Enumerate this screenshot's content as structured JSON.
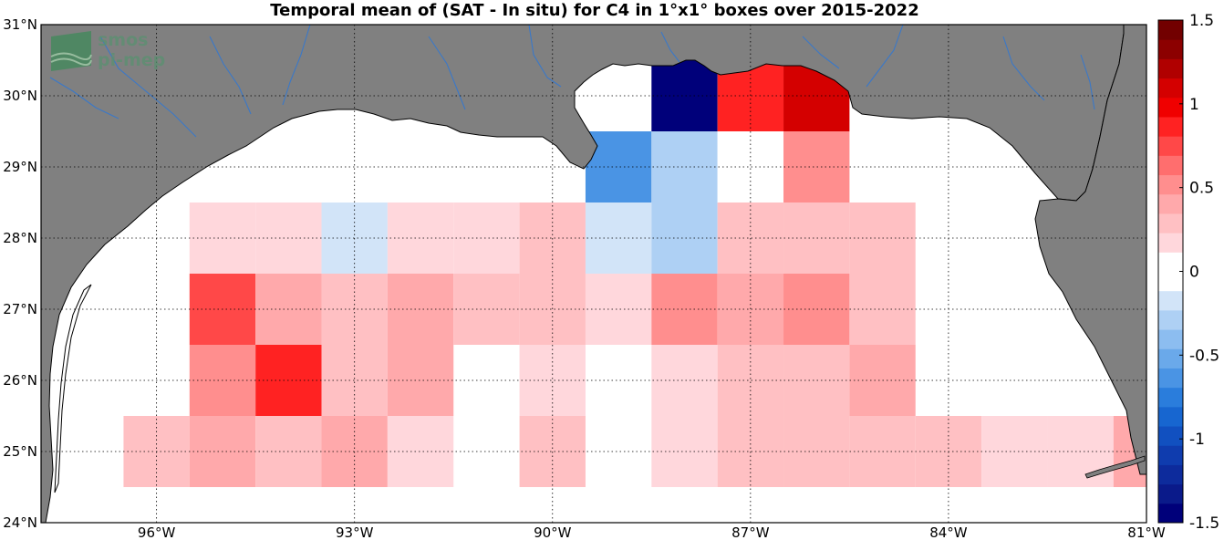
{
  "title": "Temporal mean of (SAT - In situ) for C4 in 1°x1° boxes over 2015-2022",
  "logo": {
    "line1": "smos",
    "line2": "pi-mep"
  },
  "map_extent": {
    "lon_min": -97.75,
    "lon_max": -81,
    "lat_min": 24,
    "lat_max": 31
  },
  "lat_ticks": [
    {
      "value": 31,
      "label": "31°N"
    },
    {
      "value": 30,
      "label": "30°N"
    },
    {
      "value": 29,
      "label": "29°N"
    },
    {
      "value": 28,
      "label": "28°N"
    },
    {
      "value": 27,
      "label": "27°N"
    },
    {
      "value": 26,
      "label": "26°N"
    },
    {
      "value": 25,
      "label": "25°N"
    },
    {
      "value": 24,
      "label": "24°N"
    }
  ],
  "lon_ticks": [
    {
      "value": -96,
      "label": "96°W"
    },
    {
      "value": -93,
      "label": "93°W"
    },
    {
      "value": -90,
      "label": "90°W"
    },
    {
      "value": -87,
      "label": "87°W"
    },
    {
      "value": -84,
      "label": "84°W"
    },
    {
      "value": -81,
      "label": "81°W"
    }
  ],
  "colorbar": {
    "range": [
      -1.5,
      1.5
    ],
    "ticks": [
      {
        "value": 1.5,
        "label": "1.5"
      },
      {
        "value": 1,
        "label": "1"
      },
      {
        "value": 0.5,
        "label": "0.5"
      },
      {
        "value": 0,
        "label": "0"
      },
      {
        "value": -0.5,
        "label": "-0.5"
      },
      {
        "value": -1,
        "label": "-1"
      },
      {
        "value": -1.5,
        "label": "-1.5"
      }
    ]
  },
  "colors": {
    "land": "#808080",
    "rivers": "#3a78c8",
    "ocean": "#ffffff"
  },
  "chart_data": {
    "type": "heatmap",
    "cell_size_deg": 1,
    "cells": [
      {
        "lon": -88,
        "lat": 30,
        "value": -1.45
      },
      {
        "lon": -87,
        "lat": 30,
        "value": 0.9
      },
      {
        "lon": -86,
        "lat": 30,
        "value": 1.1
      },
      {
        "lon": -89,
        "lat": 29,
        "value": -0.6
      },
      {
        "lon": -88,
        "lat": 29,
        "value": -0.3
      },
      {
        "lon": -87,
        "lat": 29,
        "value": 0.0
      },
      {
        "lon": -86,
        "lat": 29,
        "value": 0.55
      },
      {
        "lon": -95,
        "lat": 28,
        "value": 0.15
      },
      {
        "lon": -94,
        "lat": 28,
        "value": 0.15
      },
      {
        "lon": -93,
        "lat": 28,
        "value": -0.15
      },
      {
        "lon": -92,
        "lat": 28,
        "value": 0.15
      },
      {
        "lon": -91,
        "lat": 28,
        "value": 0.15
      },
      {
        "lon": -90,
        "lat": 28,
        "value": 0.25
      },
      {
        "lon": -89,
        "lat": 28,
        "value": -0.15
      },
      {
        "lon": -88,
        "lat": 28,
        "value": -0.3
      },
      {
        "lon": -87,
        "lat": 28,
        "value": 0.25
      },
      {
        "lon": -86,
        "lat": 28,
        "value": 0.25
      },
      {
        "lon": -85,
        "lat": 28,
        "value": 0.25
      },
      {
        "lon": -95,
        "lat": 27,
        "value": 0.7
      },
      {
        "lon": -94,
        "lat": 27,
        "value": 0.45
      },
      {
        "lon": -93,
        "lat": 27,
        "value": 0.3
      },
      {
        "lon": -92,
        "lat": 27,
        "value": 0.45
      },
      {
        "lon": -91,
        "lat": 27,
        "value": 0.25
      },
      {
        "lon": -90,
        "lat": 27,
        "value": 0.25
      },
      {
        "lon": -89,
        "lat": 27,
        "value": 0.15
      },
      {
        "lon": -88,
        "lat": 27,
        "value": 0.55
      },
      {
        "lon": -87,
        "lat": 27,
        "value": 0.45
      },
      {
        "lon": -86,
        "lat": 27,
        "value": 0.55
      },
      {
        "lon": -85,
        "lat": 27,
        "value": 0.25
      },
      {
        "lon": -95,
        "lat": 26,
        "value": 0.55
      },
      {
        "lon": -94,
        "lat": 26,
        "value": 0.9
      },
      {
        "lon": -93,
        "lat": 26,
        "value": 0.3
      },
      {
        "lon": -92,
        "lat": 26,
        "value": 0.45
      },
      {
        "lon": -90,
        "lat": 26,
        "value": 0.15
      },
      {
        "lon": -88,
        "lat": 26,
        "value": 0.15
      },
      {
        "lon": -87,
        "lat": 26,
        "value": 0.25
      },
      {
        "lon": -86,
        "lat": 26,
        "value": 0.25
      },
      {
        "lon": -85,
        "lat": 26,
        "value": 0.45
      },
      {
        "lon": -96,
        "lat": 25,
        "value": 0.25
      },
      {
        "lon": -95,
        "lat": 25,
        "value": 0.35
      },
      {
        "lon": -94,
        "lat": 25,
        "value": 0.3
      },
      {
        "lon": -93,
        "lat": 25,
        "value": 0.45
      },
      {
        "lon": -92,
        "lat": 25,
        "value": 0.15
      },
      {
        "lon": -90,
        "lat": 25,
        "value": 0.25
      },
      {
        "lon": -88,
        "lat": 25,
        "value": 0.15
      },
      {
        "lon": -87,
        "lat": 25,
        "value": 0.25
      },
      {
        "lon": -86,
        "lat": 25,
        "value": 0.25
      },
      {
        "lon": -85,
        "lat": 25,
        "value": 0.25
      },
      {
        "lon": -84,
        "lat": 25,
        "value": 0.25
      },
      {
        "lon": -83,
        "lat": 25,
        "value": 0.15
      },
      {
        "lon": -82,
        "lat": 25,
        "value": 0.15
      },
      {
        "lon": -81,
        "lat": 25,
        "value": 0.45
      }
    ]
  }
}
